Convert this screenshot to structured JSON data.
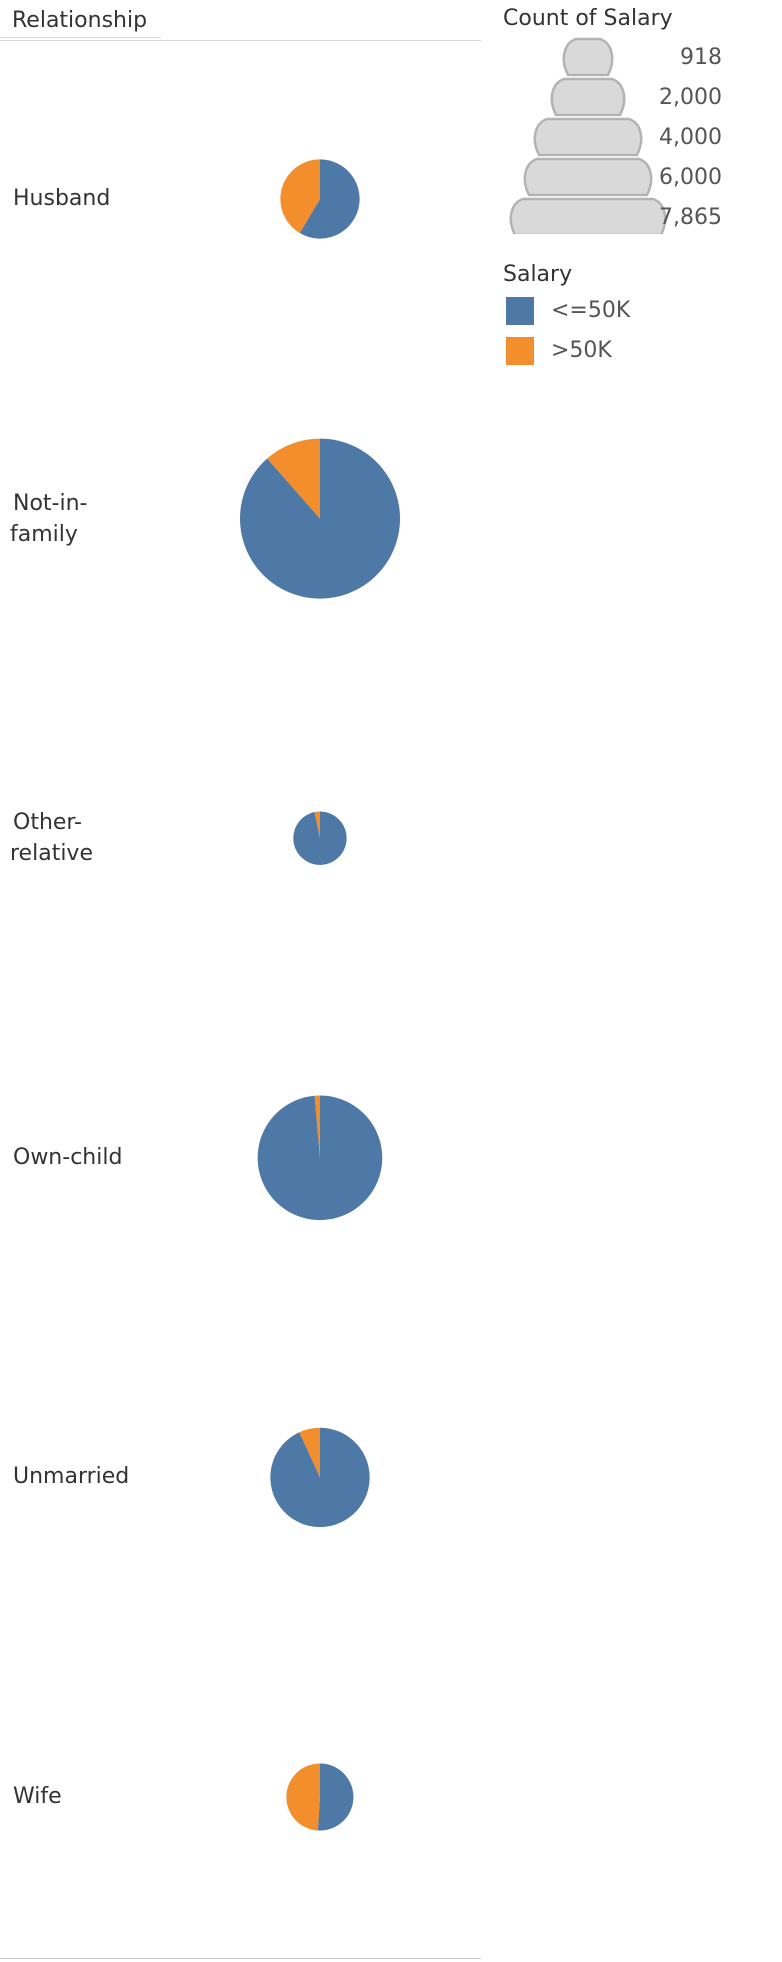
{
  "header": {
    "row_field": "Relationship"
  },
  "legends": {
    "size": {
      "title": "Count of Salary",
      "values": [
        "918",
        "2,000",
        "4,000",
        "6,000",
        "7,865"
      ]
    },
    "color": {
      "title": "Salary",
      "items": [
        {
          "label": "<=50K",
          "color": "#4e79a7"
        },
        {
          "label": ">50K",
          "color": "#f28e2b"
        }
      ]
    }
  },
  "colors": {
    "low": "#4e79a7",
    "high": "#f28e2b",
    "size_legend_fill": "#d9d9d9",
    "size_legend_stroke": "#b3b3b3"
  },
  "chart_data": {
    "type": "pie",
    "dimension": "Relationship",
    "measure": "Count of Salary",
    "color_field": "Salary",
    "categories": [
      "Husband",
      "Not-in-family",
      "Other-relative",
      "Own-child",
      "Unmarried",
      "Wife"
    ],
    "series": [
      {
        "name": "<=50K",
        "values": [
          1200,
          7400,
          900,
          5000,
          3000,
          750
        ]
      },
      {
        "name": ">50K",
        "values": [
          850,
          960,
          30,
          70,
          220,
          720
        ]
      }
    ],
    "size_legend_range": [
      918,
      7865
    ]
  }
}
